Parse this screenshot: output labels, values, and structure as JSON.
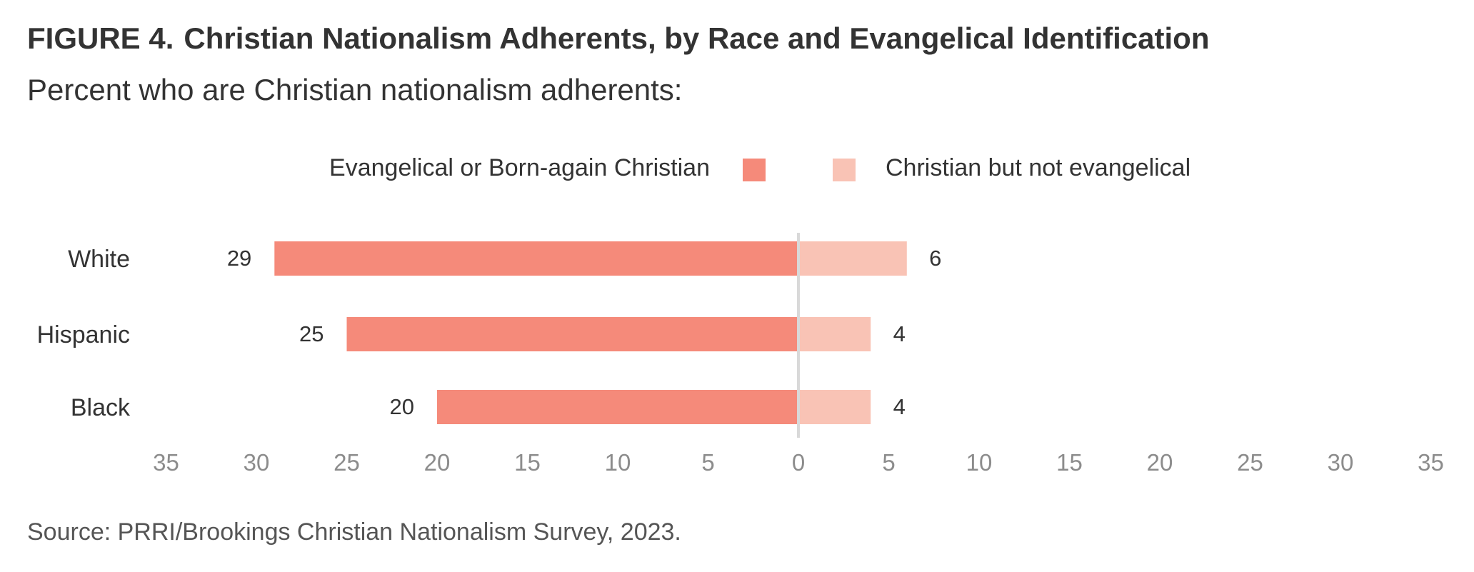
{
  "figure": {
    "number": "FIGURE 4.",
    "title": "Christian Nationalism Adherents, by Race and Evangelical Identification",
    "subtitle": "Percent who are Christian nationalism adherents:",
    "source": "Source: PRRI/Brookings Christian Nationalism Survey, 2023."
  },
  "legend": {
    "left_label": "Evangelical or Born-again Christian",
    "right_label": "Christian but not evangelical"
  },
  "colors": {
    "evangelical": "#F58A7A",
    "not_evangelical": "#F9C3B5",
    "axis_line": "#D9D9D9",
    "tick_text": "#8C8C8C",
    "text": "#333333"
  },
  "chart_data": {
    "type": "bar",
    "orientation": "horizontal-diverging",
    "categories": [
      "White",
      "Hispanic",
      "Black"
    ],
    "series": [
      {
        "name": "Evangelical or Born-again Christian",
        "side": "left",
        "values": [
          29,
          25,
          20
        ]
      },
      {
        "name": "Christian but not evangelical",
        "side": "right",
        "values": [
          6,
          4,
          4
        ]
      }
    ],
    "xlim": [
      -35,
      35
    ],
    "tick_labels": [
      "35",
      "30",
      "25",
      "20",
      "15",
      "10",
      "5",
      "0",
      "5",
      "10",
      "15",
      "20",
      "25",
      "30",
      "35"
    ],
    "grid": false,
    "legend_position": "top-center",
    "data_labels": true
  }
}
